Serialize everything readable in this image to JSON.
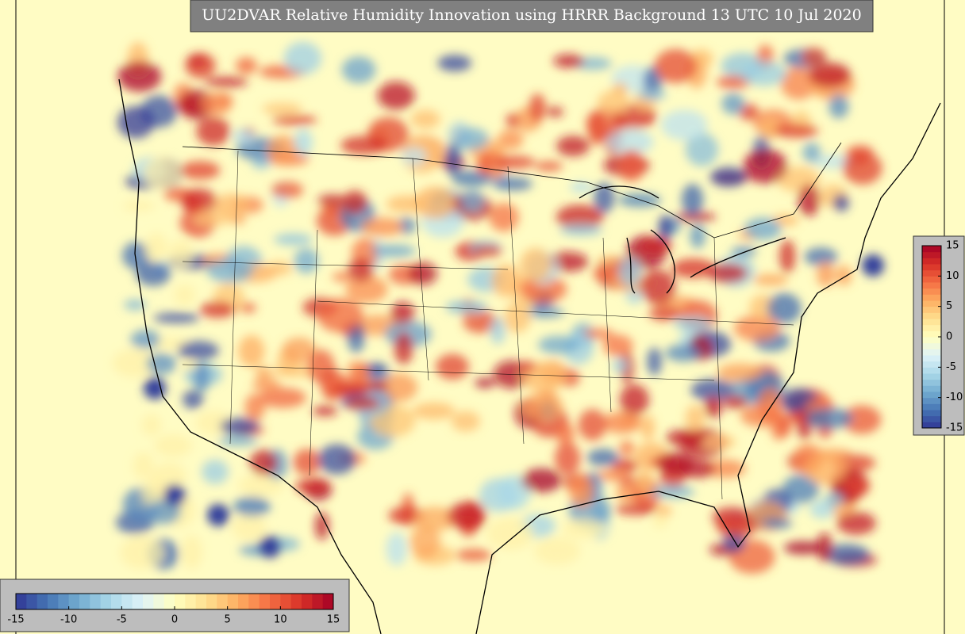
{
  "title": "UU2DVAR Relative Humidity Innovation using HRRR Background 13 UTC 10 Jul 2020",
  "colormap": [
    "#313695",
    "#4575b4",
    "#74add1",
    "#abd9e9",
    "#e0f3f8",
    "#ffffbf",
    "#fee090",
    "#fdae61",
    "#f46d43",
    "#d73027",
    "#a50026"
  ],
  "colorbar_bottom": {
    "range": [
      -15,
      15
    ],
    "ticks": [
      -15,
      -10,
      -5,
      0,
      5,
      10,
      15
    ]
  },
  "colorbar_right": {
    "range": [
      -15,
      15
    ],
    "ticks": [
      15,
      10,
      5,
      0,
      -5,
      -10,
      -15
    ]
  }
}
